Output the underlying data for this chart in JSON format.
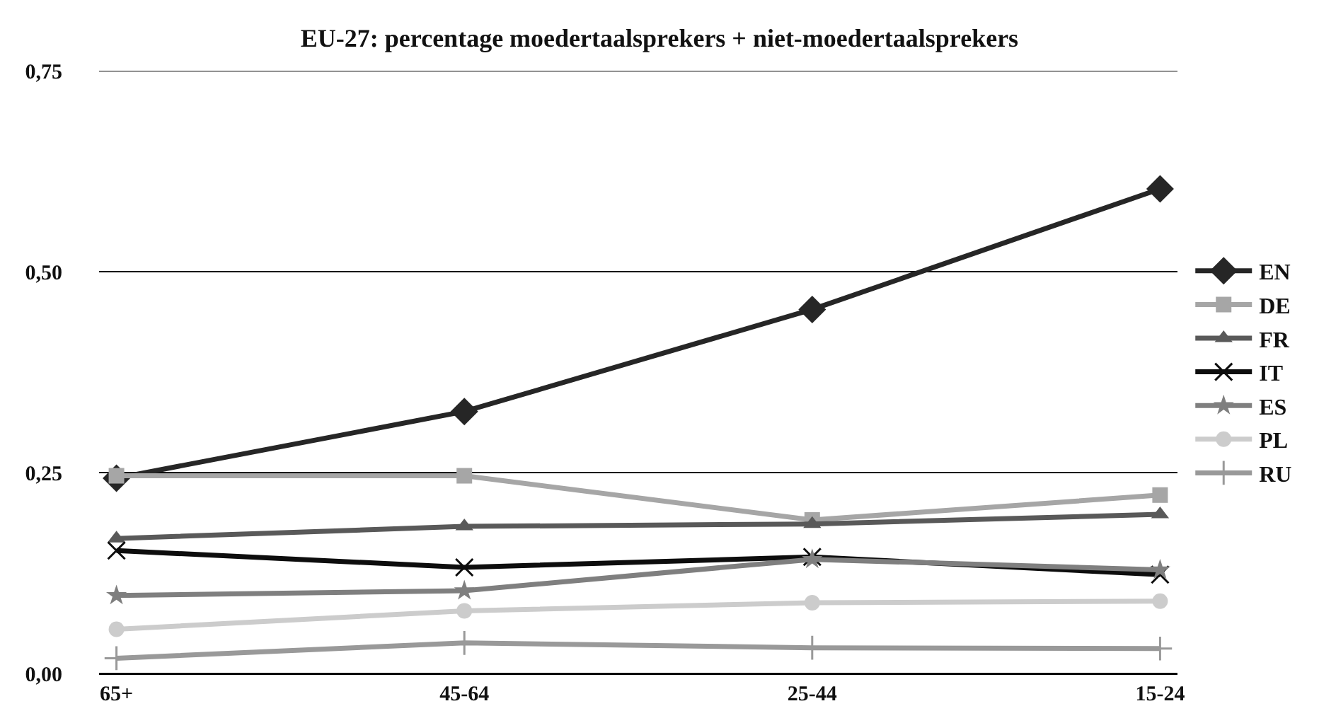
{
  "chart_data": {
    "type": "line",
    "title": "EU-27: percentage moedertaalsprekers + niet-moedertaalsprekers",
    "categories": [
      "65+",
      "45-64",
      "25-44",
      "15-24"
    ],
    "series": [
      {
        "name": "EN",
        "color": "#262626",
        "marker": "diamond",
        "values": [
          0.243,
          0.326,
          0.453,
          0.603
        ]
      },
      {
        "name": "DE",
        "color": "#a6a6a6",
        "marker": "square",
        "values": [
          0.246,
          0.246,
          0.191,
          0.222
        ]
      },
      {
        "name": "FR",
        "color": "#595959",
        "marker": "triangle",
        "values": [
          0.168,
          0.183,
          0.186,
          0.198
        ]
      },
      {
        "name": "IT",
        "color": "#0d0d0d",
        "marker": "cross",
        "values": [
          0.153,
          0.132,
          0.145,
          0.123
        ]
      },
      {
        "name": "ES",
        "color": "#7f7f7f",
        "marker": "star",
        "values": [
          0.097,
          0.103,
          0.142,
          0.129
        ]
      },
      {
        "name": "PL",
        "color": "#cccccc",
        "marker": "circle",
        "values": [
          0.055,
          0.078,
          0.088,
          0.09
        ]
      },
      {
        "name": "RU",
        "color": "#999999",
        "marker": "plus",
        "values": [
          0.019,
          0.038,
          0.032,
          0.031
        ]
      }
    ],
    "ylim": [
      0,
      0.75
    ],
    "yticks": [
      {
        "value": 0,
        "label": "0,00"
      },
      {
        "value": 0.25,
        "label": "0,25"
      },
      {
        "value": 0.5,
        "label": "0,50"
      },
      {
        "value": 0.75,
        "label": "0,75"
      }
    ],
    "grid": "y",
    "legend": "right"
  }
}
